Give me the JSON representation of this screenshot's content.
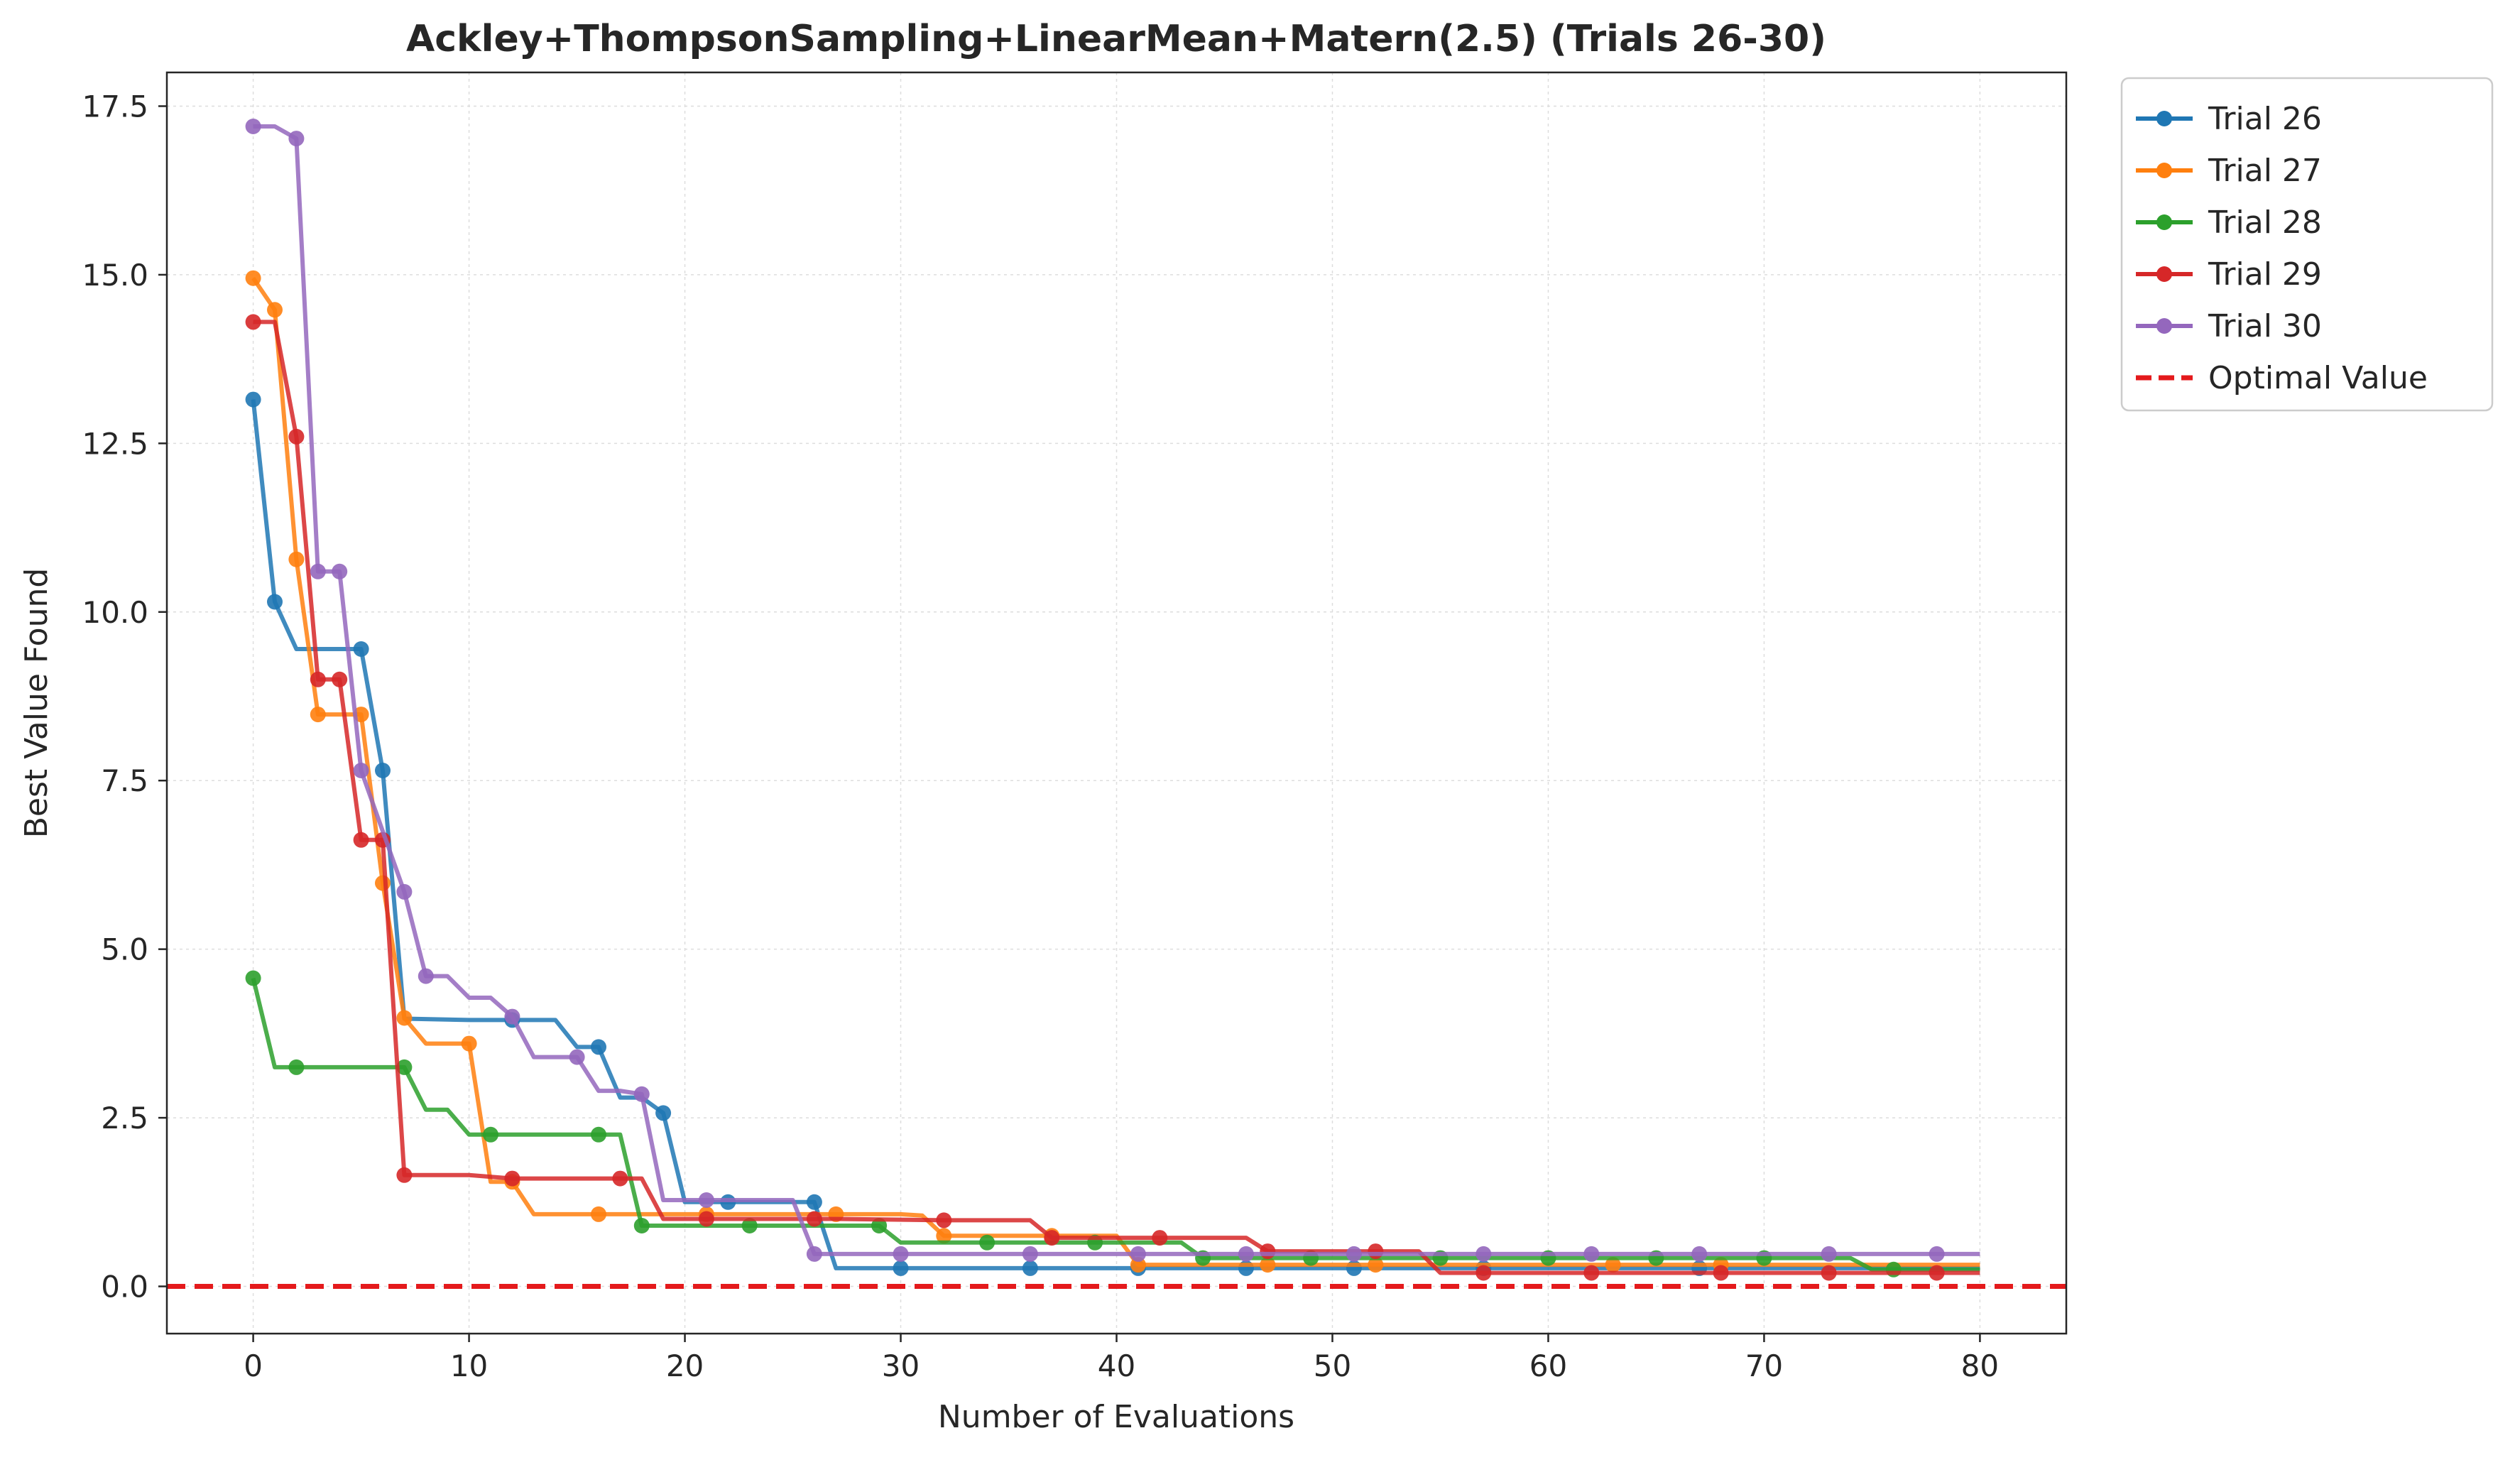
{
  "chart_data": {
    "type": "line",
    "title": "Ackley+ThompsonSampling+LinearMean+Matern(2.5) (Trials 26-30)",
    "xlabel": "Number of Evaluations",
    "ylabel": "Best Value Found",
    "xlim": [
      -4,
      84
    ],
    "ylim": [
      -0.7,
      18.0
    ],
    "xticks": [
      0,
      10,
      20,
      30,
      40,
      50,
      60,
      70,
      80
    ],
    "yticks": [
      0.0,
      2.5,
      5.0,
      7.5,
      10.0,
      12.5,
      15.0,
      17.5
    ],
    "xtick_labels": [
      "0",
      "10",
      "20",
      "30",
      "40",
      "50",
      "60",
      "70",
      "80"
    ],
    "ytick_labels": [
      "0.0",
      "2.5",
      "5.0",
      "7.5",
      "10.0",
      "12.5",
      "15.0",
      "17.5"
    ],
    "grid": true,
    "legend_position": "outside-top-right",
    "optimal_value": {
      "name": "Optimal Value",
      "y": 0.0,
      "color": "#e41a1c",
      "style": "dashed"
    },
    "series": [
      {
        "name": "Trial 26",
        "color": "#1f77b4",
        "line": [
          [
            0,
            13.15
          ],
          [
            1,
            10.15
          ],
          [
            2,
            9.45
          ],
          [
            5,
            9.45
          ],
          [
            6,
            7.65
          ],
          [
            7,
            3.97
          ],
          [
            10,
            3.95
          ],
          [
            14,
            3.95
          ],
          [
            15,
            3.55
          ],
          [
            16,
            3.55
          ],
          [
            17,
            2.8
          ],
          [
            18,
            2.8
          ],
          [
            19,
            2.57
          ],
          [
            20,
            1.25
          ],
          [
            26,
            1.25
          ],
          [
            27,
            0.27
          ],
          [
            80,
            0.27
          ]
        ],
        "markers": [
          [
            0,
            13.15
          ],
          [
            1,
            10.15
          ],
          [
            5,
            9.45
          ],
          [
            6,
            7.65
          ],
          [
            12,
            3.95
          ],
          [
            16,
            3.55
          ],
          [
            19,
            2.57
          ],
          [
            22,
            1.25
          ],
          [
            26,
            1.25
          ],
          [
            30,
            0.27
          ],
          [
            36,
            0.27
          ],
          [
            41,
            0.27
          ],
          [
            46,
            0.27
          ],
          [
            51,
            0.27
          ],
          [
            57,
            0.27
          ],
          [
            67,
            0.27
          ]
        ]
      },
      {
        "name": "Trial 27",
        "color": "#ff7f0e",
        "line": [
          [
            0,
            14.95
          ],
          [
            1,
            14.48
          ],
          [
            2,
            10.78
          ],
          [
            3,
            8.48
          ],
          [
            5,
            8.48
          ],
          [
            6,
            5.98
          ],
          [
            7,
            3.98
          ],
          [
            8,
            3.6
          ],
          [
            10,
            3.6
          ],
          [
            11,
            1.55
          ],
          [
            12,
            1.55
          ],
          [
            13,
            1.07
          ],
          [
            20,
            1.07
          ],
          [
            21,
            1.07
          ],
          [
            30,
            1.07
          ],
          [
            31,
            1.05
          ],
          [
            32,
            0.75
          ],
          [
            37,
            0.75
          ],
          [
            40,
            0.75
          ],
          [
            41,
            0.32
          ],
          [
            80,
            0.32
          ]
        ],
        "markers": [
          [
            0,
            14.95
          ],
          [
            1,
            14.48
          ],
          [
            2,
            10.78
          ],
          [
            3,
            8.48
          ],
          [
            5,
            8.48
          ],
          [
            6,
            5.98
          ],
          [
            7,
            3.98
          ],
          [
            10,
            3.6
          ],
          [
            12,
            1.55
          ],
          [
            16,
            1.07
          ],
          [
            21,
            1.07
          ],
          [
            27,
            1.07
          ],
          [
            32,
            0.75
          ],
          [
            37,
            0.75
          ],
          [
            41,
            0.32
          ],
          [
            47,
            0.32
          ],
          [
            52,
            0.32
          ],
          [
            63,
            0.32
          ],
          [
            68,
            0.32
          ]
        ]
      },
      {
        "name": "Trial 28",
        "color": "#2ca02c",
        "line": [
          [
            0,
            4.57
          ],
          [
            1,
            3.25
          ],
          [
            2,
            3.25
          ],
          [
            7,
            3.25
          ],
          [
            8,
            2.62
          ],
          [
            9,
            2.62
          ],
          [
            10,
            2.25
          ],
          [
            11,
            2.25
          ],
          [
            17,
            2.25
          ],
          [
            18,
            0.9
          ],
          [
            29,
            0.9
          ],
          [
            30,
            0.65
          ],
          [
            43,
            0.65
          ],
          [
            44,
            0.42
          ],
          [
            74,
            0.42
          ],
          [
            75,
            0.25
          ],
          [
            80,
            0.25
          ]
        ],
        "markers": [
          [
            0,
            4.57
          ],
          [
            2,
            3.25
          ],
          [
            7,
            3.25
          ],
          [
            11,
            2.25
          ],
          [
            16,
            2.25
          ],
          [
            18,
            0.9
          ],
          [
            23,
            0.9
          ],
          [
            29,
            0.9
          ],
          [
            34,
            0.65
          ],
          [
            39,
            0.65
          ],
          [
            44,
            0.42
          ],
          [
            49,
            0.42
          ],
          [
            55,
            0.42
          ],
          [
            60,
            0.42
          ],
          [
            65,
            0.42
          ],
          [
            70,
            0.42
          ],
          [
            76,
            0.25
          ]
        ]
      },
      {
        "name": "Trial 29",
        "color": "#d62728",
        "line": [
          [
            0,
            14.3
          ],
          [
            1,
            14.3
          ],
          [
            2,
            12.6
          ],
          [
            3,
            9.0
          ],
          [
            4,
            9.0
          ],
          [
            5,
            6.62
          ],
          [
            6,
            6.62
          ],
          [
            7,
            1.65
          ],
          [
            10,
            1.65
          ],
          [
            12,
            1.6
          ],
          [
            18,
            1.6
          ],
          [
            19,
            1.0
          ],
          [
            26,
            1.0
          ],
          [
            27,
            1.0
          ],
          [
            32,
            0.98
          ],
          [
            36,
            0.98
          ],
          [
            37,
            0.72
          ],
          [
            42,
            0.72
          ],
          [
            46,
            0.72
          ],
          [
            47,
            0.52
          ],
          [
            54,
            0.52
          ],
          [
            55,
            0.2
          ],
          [
            80,
            0.2
          ]
        ],
        "markers": [
          [
            0,
            14.3
          ],
          [
            2,
            12.6
          ],
          [
            3,
            9.0
          ],
          [
            4,
            9.0
          ],
          [
            5,
            6.62
          ],
          [
            6,
            6.62
          ],
          [
            7,
            1.65
          ],
          [
            12,
            1.6
          ],
          [
            17,
            1.6
          ],
          [
            21,
            1.0
          ],
          [
            26,
            1.0
          ],
          [
            32,
            0.98
          ],
          [
            37,
            0.72
          ],
          [
            42,
            0.72
          ],
          [
            47,
            0.52
          ],
          [
            52,
            0.52
          ],
          [
            57,
            0.2
          ],
          [
            62,
            0.2
          ],
          [
            68,
            0.2
          ],
          [
            73,
            0.2
          ],
          [
            78,
            0.2
          ]
        ]
      },
      {
        "name": "Trial 30",
        "color": "#9467bd",
        "line": [
          [
            0,
            17.2
          ],
          [
            1,
            17.2
          ],
          [
            2,
            17.02
          ],
          [
            3,
            10.6
          ],
          [
            4,
            10.6
          ],
          [
            5,
            7.65
          ],
          [
            7,
            5.85
          ],
          [
            8,
            4.6
          ],
          [
            9,
            4.6
          ],
          [
            10,
            4.28
          ],
          [
            11,
            4.28
          ],
          [
            12,
            4.0
          ],
          [
            13,
            3.4
          ],
          [
            15,
            3.4
          ],
          [
            16,
            2.9
          ],
          [
            17,
            2.9
          ],
          [
            18,
            2.85
          ],
          [
            19,
            1.28
          ],
          [
            25,
            1.28
          ],
          [
            26,
            0.48
          ],
          [
            80,
            0.48
          ]
        ],
        "markers": [
          [
            0,
            17.2
          ],
          [
            2,
            17.02
          ],
          [
            3,
            10.6
          ],
          [
            4,
            10.6
          ],
          [
            5,
            7.65
          ],
          [
            7,
            5.85
          ],
          [
            8,
            4.6
          ],
          [
            12,
            4.0
          ],
          [
            15,
            3.4
          ],
          [
            18,
            2.85
          ],
          [
            21,
            1.28
          ],
          [
            26,
            0.48
          ],
          [
            30,
            0.48
          ],
          [
            36,
            0.48
          ],
          [
            41,
            0.48
          ],
          [
            46,
            0.48
          ],
          [
            51,
            0.48
          ],
          [
            57,
            0.48
          ],
          [
            62,
            0.48
          ],
          [
            67,
            0.48
          ],
          [
            73,
            0.48
          ],
          [
            78,
            0.48
          ]
        ]
      }
    ]
  }
}
